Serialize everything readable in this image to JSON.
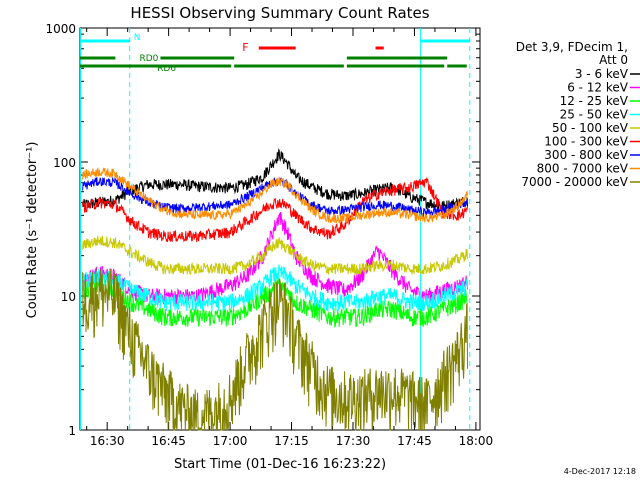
{
  "chart_data": {
    "type": "line",
    "title": "HESSI Observing Summary Count Rates",
    "xlabel": "Start Time (01-Dec-16 16:23:22)",
    "ylabel": "Count Rate (s⁻¹ detector⁻¹)",
    "yscale": "log",
    "ylim": [
      1,
      1000
    ],
    "xlim": [
      "16:23:22",
      "18:01:00"
    ],
    "x_ticks": [
      "16:30",
      "16:45",
      "17:00",
      "17:15",
      "17:30",
      "17:45",
      "18:00"
    ],
    "y_ticks": [
      "1",
      "10",
      "100",
      "1000"
    ],
    "grid": false,
    "legend_header": [
      "Det 3,9, FDecim 1,",
      "Att 0"
    ],
    "legend_position": "right",
    "footer_date": "4-Dec-2017 12:18",
    "flags": {
      "night": {
        "label": "N",
        "color": "#00ffff",
        "intervals": [
          [
            "16:23:22",
            "16:35:30"
          ],
          [
            "17:46:30",
            "17:58:30"
          ]
        ]
      },
      "flare": {
        "label": "F",
        "color": "#ff0000",
        "intervals": [
          [
            "17:07:00",
            "17:16:00"
          ],
          [
            "17:35:30",
            "17:37:30"
          ]
        ]
      },
      "rd0": {
        "label": "RD0",
        "color": "#008000",
        "intervals": [
          [
            "16:23:22",
            "16:32:00"
          ],
          [
            "16:43:00",
            "17:01:00"
          ],
          [
            "17:28:30",
            "17:53:00"
          ]
        ]
      },
      "rd6": {
        "label": "RD6",
        "color": "#008000",
        "intervals": [
          [
            "16:23:22",
            "17:01:00"
          ],
          [
            "17:01:00",
            "17:28:30"
          ],
          [
            "17:28:30",
            "17:53:00"
          ],
          [
            "17:53:00",
            "17:58:30"
          ]
        ]
      }
    },
    "vlines": {
      "color": "#00ffff",
      "solid": [
        "16:23:30",
        "17:46:30"
      ],
      "dashed": [
        "16:35:30",
        "17:58:30"
      ]
    },
    "x": [
      "16:24",
      "16:28",
      "16:32",
      "16:36",
      "16:40",
      "16:44",
      "16:48",
      "16:52",
      "16:56",
      "17:00",
      "17:04",
      "17:08",
      "17:10",
      "17:12",
      "17:14",
      "17:16",
      "17:20",
      "17:24",
      "17:28",
      "17:32",
      "17:36",
      "17:40",
      "17:44",
      "17:48",
      "17:52",
      "17:56",
      "17:58"
    ],
    "series": [
      {
        "name": "3 - 6 keV",
        "color": "#000000",
        "values": [
          48,
          50,
          52,
          62,
          68,
          68,
          68,
          66,
          65,
          64,
          68,
          78,
          95,
          115,
          98,
          78,
          65,
          58,
          56,
          58,
          62,
          65,
          55,
          50,
          47,
          50,
          52
        ]
      },
      {
        "name": "6 - 12 keV",
        "color": "#ff00ff",
        "values": [
          13,
          15,
          14,
          11,
          10,
          10,
          10,
          10,
          11,
          12,
          14,
          20,
          28,
          40,
          30,
          20,
          14,
          12,
          11,
          14,
          22,
          15,
          11,
          10,
          11,
          12,
          13
        ]
      },
      {
        "name": "12 - 25 keV",
        "color": "#00ff00",
        "values": [
          11,
          12,
          11,
          9,
          8,
          7,
          7,
          7,
          7,
          7,
          8,
          10,
          11,
          12,
          11,
          9,
          8,
          7,
          7,
          7,
          8,
          8,
          7,
          7,
          8,
          9,
          10
        ]
      },
      {
        "name": "25 - 50 keV",
        "color": "#00ffff",
        "values": [
          13,
          14,
          13,
          11,
          10,
          9,
          9,
          9,
          9,
          9,
          10,
          12,
          14,
          15,
          14,
          12,
          10,
          9,
          9,
          9,
          10,
          10,
          9,
          9,
          10,
          11,
          12
        ]
      },
      {
        "name": "50 - 100 keV",
        "color": "#c8c800",
        "values": [
          24,
          26,
          25,
          21,
          18,
          16,
          16,
          16,
          16,
          16,
          17,
          20,
          23,
          25,
          23,
          20,
          17,
          16,
          16,
          16,
          17,
          17,
          16,
          16,
          17,
          19,
          21
        ]
      },
      {
        "name": "100 - 300 keV",
        "color": "#ff0000",
        "values": [
          46,
          50,
          48,
          36,
          30,
          28,
          28,
          28,
          29,
          30,
          36,
          44,
          49,
          50,
          47,
          40,
          32,
          29,
          34,
          50,
          58,
          62,
          65,
          72,
          42,
          40,
          44
        ]
      },
      {
        "name": "300 - 800 keV",
        "color": "#0000ff",
        "values": [
          66,
          72,
          70,
          58,
          50,
          46,
          45,
          46,
          47,
          48,
          55,
          65,
          70,
          72,
          68,
          58,
          48,
          43,
          44,
          46,
          48,
          47,
          44,
          42,
          44,
          48,
          52
        ]
      },
      {
        "name": "800 - 7000 keV",
        "color": "#ff8c00",
        "values": [
          80,
          85,
          82,
          64,
          52,
          44,
          41,
          40,
          40,
          41,
          48,
          60,
          68,
          72,
          68,
          58,
          44,
          38,
          38,
          40,
          42,
          42,
          40,
          38,
          40,
          48,
          58
        ]
      },
      {
        "name": "7000 - 20000 keV",
        "color": "#808000",
        "values": [
          10,
          11,
          10,
          5,
          3,
          2,
          1.5,
          1.3,
          1.4,
          1.8,
          3.5,
          6,
          8,
          9.5,
          8,
          5,
          3,
          2,
          1.8,
          1.8,
          2,
          2,
          1.8,
          1.6,
          2.5,
          4,
          6
        ]
      }
    ]
  }
}
